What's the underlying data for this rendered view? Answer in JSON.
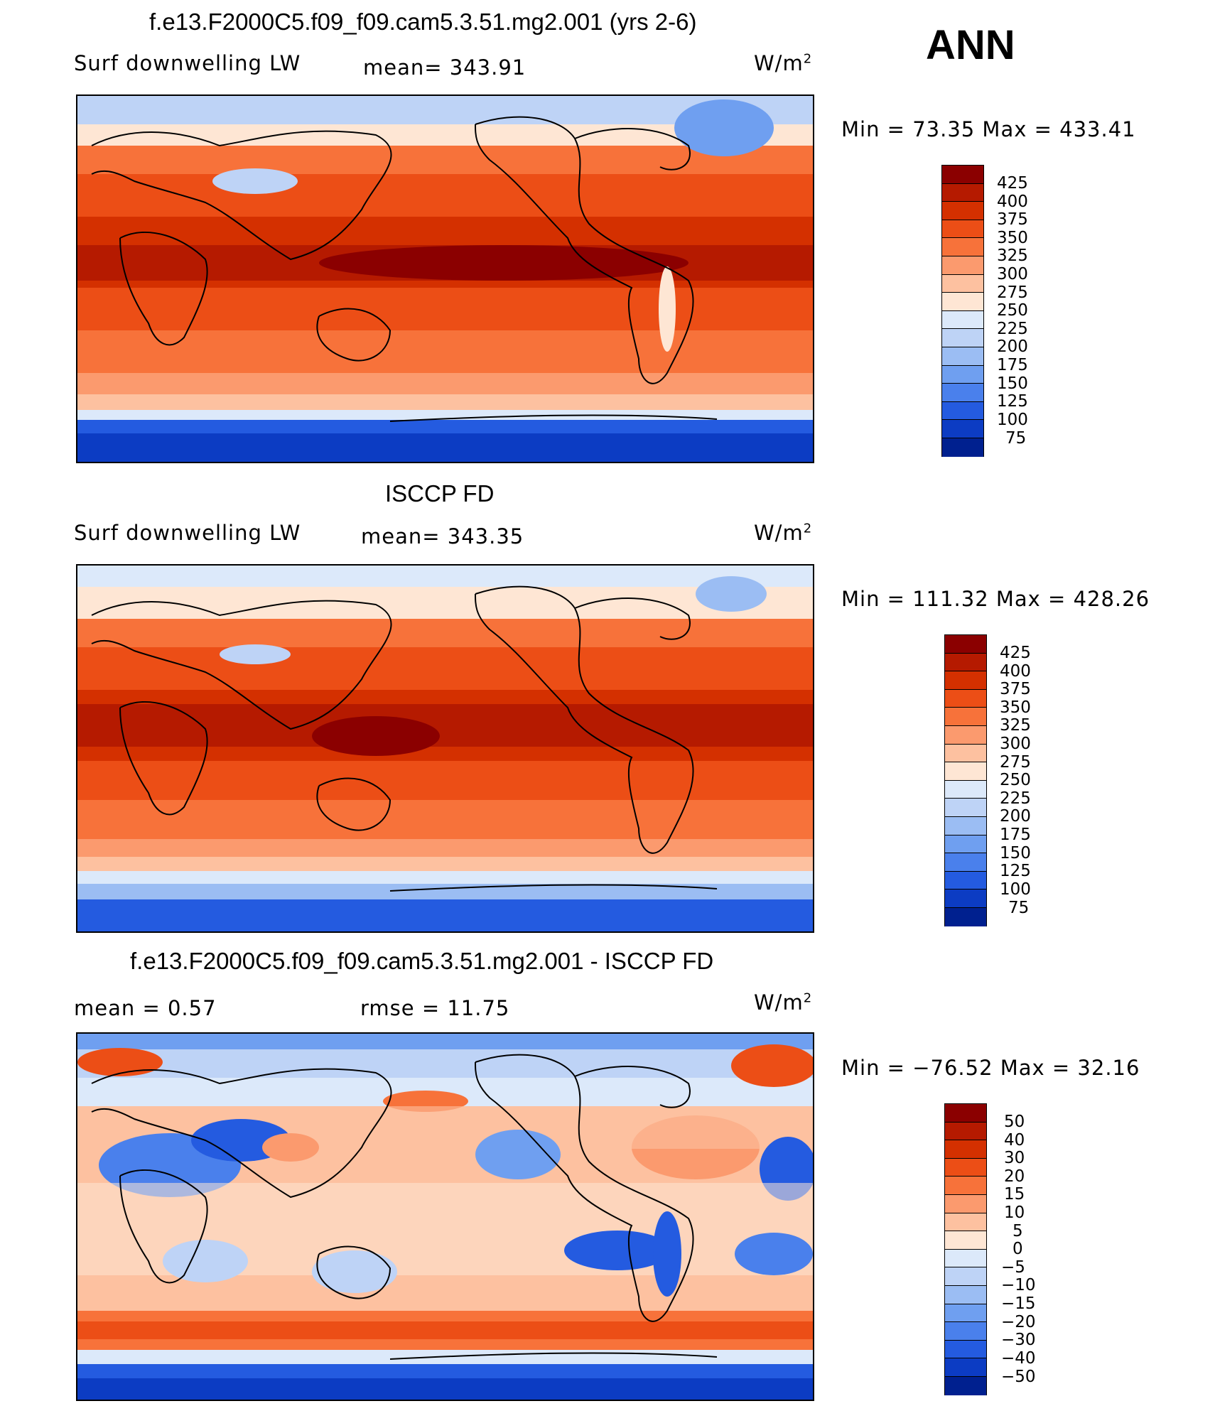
{
  "header": {
    "season": "ANN"
  },
  "panels": [
    {
      "id": "model",
      "title": "f.e13.F2000C5.f09_f09.cam5.3.51.mg2.001 (yrs 2-6)",
      "left_label": "Surf  downwelling  LW",
      "center_label": "mean=  343.91",
      "units_label": "W/m",
      "units_sup": "2",
      "minmax": "Min  =    73.35  Max  =  433.41"
    },
    {
      "id": "obs",
      "title": "ISCCP FD",
      "left_label": "Surf  downwelling  LW",
      "center_label": "mean=  343.35",
      "units_label": "W/m",
      "units_sup": "2",
      "minmax": "Min  =  111.32  Max  =  428.26"
    },
    {
      "id": "diff",
      "title": "f.e13.F2000C5.f09_f09.cam5.3.51.mg2.001 - ISCCP FD",
      "left_label": "mean  =     0.57",
      "center_label": "rmse  =    11.75",
      "units_label": "W/m",
      "units_sup": "2",
      "minmax": "Min  = −76.52  Max  =    32.16"
    }
  ],
  "chart_data": [
    {
      "type": "heatmap",
      "title": "f.e13.F2000C5.f09_f09.cam5.3.51.mg2.001 (yrs 2-6)",
      "variable": "Surf downwelling LW",
      "units": "W/m2",
      "mean": 343.91,
      "min": 73.35,
      "max": 433.41,
      "colorbar_levels": [
        "425",
        "400",
        "375",
        "350",
        "325",
        "300",
        "275",
        "250",
        "225",
        "200",
        "175",
        "150",
        "125",
        "100",
        "75"
      ],
      "colorbar_colors": [
        "#8b0000",
        "#b51a00",
        "#d43000",
        "#ec4e16",
        "#f7723a",
        "#fb9a6e",
        "#fdc1a0",
        "#fee6d4",
        "#dce9fa",
        "#bed3f6",
        "#9bbdf3",
        "#6f9ff0",
        "#4a80ec",
        "#245be0",
        "#0c3cc3",
        "#00208f"
      ]
    },
    {
      "type": "heatmap",
      "title": "ISCCP FD",
      "variable": "Surf downwelling LW",
      "units": "W/m2",
      "mean": 343.35,
      "min": 111.32,
      "max": 428.26,
      "colorbar_levels": [
        "425",
        "400",
        "375",
        "350",
        "325",
        "300",
        "275",
        "250",
        "225",
        "200",
        "175",
        "150",
        "125",
        "100",
        "75"
      ],
      "colorbar_colors": [
        "#8b0000",
        "#b51a00",
        "#d43000",
        "#ec4e16",
        "#f7723a",
        "#fb9a6e",
        "#fdc1a0",
        "#fee6d4",
        "#dce9fa",
        "#bed3f6",
        "#9bbdf3",
        "#6f9ff0",
        "#4a80ec",
        "#245be0",
        "#0c3cc3",
        "#00208f"
      ]
    },
    {
      "type": "heatmap",
      "title": "f.e13.F2000C5.f09_f09.cam5.3.51.mg2.001 - ISCCP FD",
      "units": "W/m2",
      "mean": 0.57,
      "rmse": 11.75,
      "min": -76.52,
      "max": 32.16,
      "colorbar_levels": [
        "50",
        "40",
        "30",
        "20",
        "15",
        "10",
        "5",
        "0",
        "−5",
        "−10",
        "−15",
        "−20",
        "−30",
        "−40",
        "−50"
      ],
      "colorbar_colors": [
        "#8b0000",
        "#b51a00",
        "#d43000",
        "#ec4e16",
        "#f7723a",
        "#fb9a6e",
        "#fdc1a0",
        "#fee6d4",
        "#dce9fa",
        "#bed3f6",
        "#9bbdf3",
        "#6f9ff0",
        "#4a80ec",
        "#245be0",
        "#0c3cc3",
        "#00208f"
      ]
    }
  ]
}
